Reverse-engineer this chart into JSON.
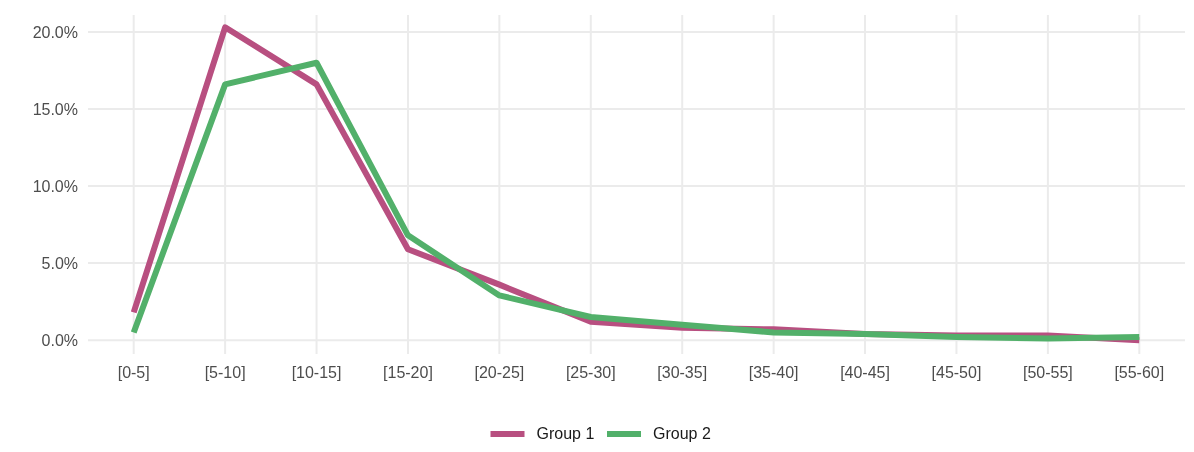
{
  "chart_data": {
    "type": "line",
    "categories": [
      "[0-5]",
      "[5-10]",
      "[10-15]",
      "[15-20]",
      "[20-25]",
      "[25-30]",
      "[30-35]",
      "[35-40]",
      "[40-45]",
      "[45-50]",
      "[50-55]",
      "[55-60]"
    ],
    "series": [
      {
        "name": "Group 1",
        "color": "#b84f80",
        "values": [
          1.8,
          20.3,
          16.6,
          5.9,
          3.6,
          1.2,
          0.8,
          0.7,
          0.4,
          0.3,
          0.3,
          0.0
        ]
      },
      {
        "name": "Group 2",
        "color": "#52b06a",
        "values": [
          0.5,
          16.6,
          18.0,
          6.8,
          2.9,
          1.5,
          1.0,
          0.5,
          0.4,
          0.2,
          0.1,
          0.2
        ]
      }
    ],
    "ylim": [
      -0.9,
      21.1
    ],
    "yticks": [
      {
        "value": 0,
        "label": "0.0%"
      },
      {
        "value": 5,
        "label": "5.0%"
      },
      {
        "value": 10,
        "label": "10.0%"
      },
      {
        "value": 15,
        "label": "15.0%"
      },
      {
        "value": 20,
        "label": "20.0%"
      }
    ],
    "grid": true,
    "legend": "bottom",
    "line_style": "solid",
    "marker": "none"
  }
}
